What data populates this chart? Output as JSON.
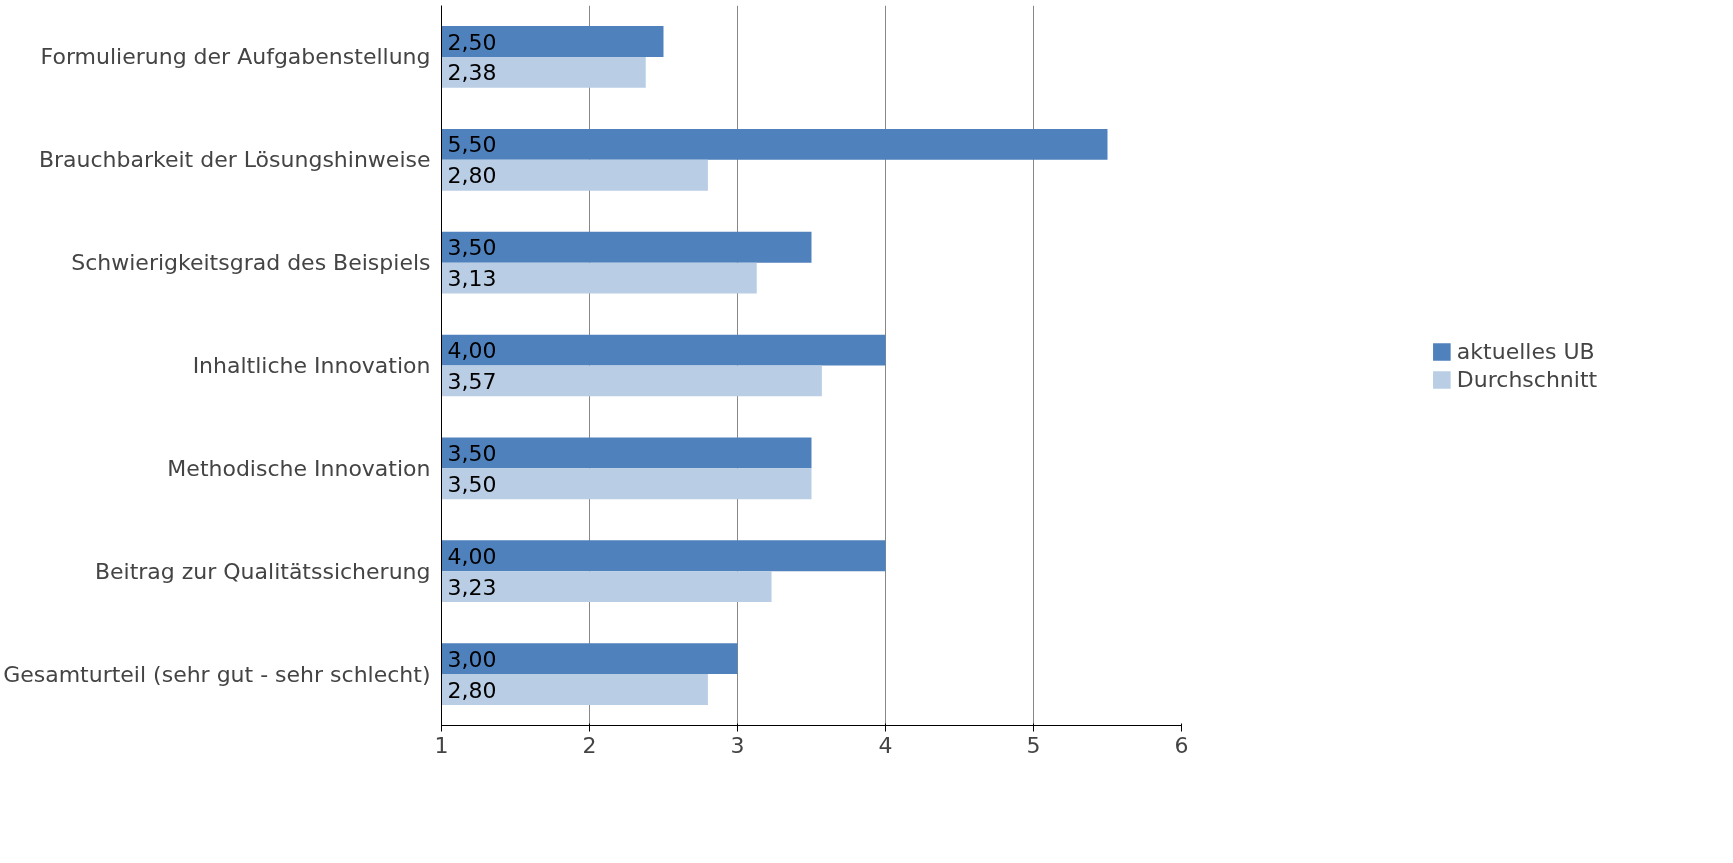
{
  "chart_data": {
    "type": "bar",
    "orientation": "horizontal",
    "categories": [
      "Formulierung der Aufgabenstellung",
      "Brauchbarkeit der Lösungshinweise",
      "Schwierigkeitsgrad des Beispiels",
      "Inhaltliche Innovation",
      "Methodische Innovation",
      "Beitrag zur Qualitätssicherung",
      "Gesamturteil (sehr gut - sehr schlecht)"
    ],
    "series": [
      {
        "name": "aktuelles UB",
        "color": "#4f81bd",
        "values": [
          2.5,
          5.5,
          3.5,
          4.0,
          3.5,
          4.0,
          3.0
        ],
        "value_labels": [
          "2,50",
          "5,50",
          "3,50",
          "4,00",
          "3,50",
          "4,00",
          "3,00"
        ]
      },
      {
        "name": "Durchschnitt",
        "color": "#b9cde5",
        "values": [
          2.38,
          2.8,
          3.13,
          3.57,
          3.5,
          3.23,
          2.8
        ],
        "value_labels": [
          "2,38",
          "2,80",
          "3,13",
          "3,57",
          "3,50",
          "3,23",
          "2,80"
        ]
      }
    ],
    "xlim": [
      1,
      6
    ],
    "xticks": [
      1,
      2,
      3,
      4,
      5,
      6
    ],
    "grid": "x",
    "legend": "right"
  }
}
